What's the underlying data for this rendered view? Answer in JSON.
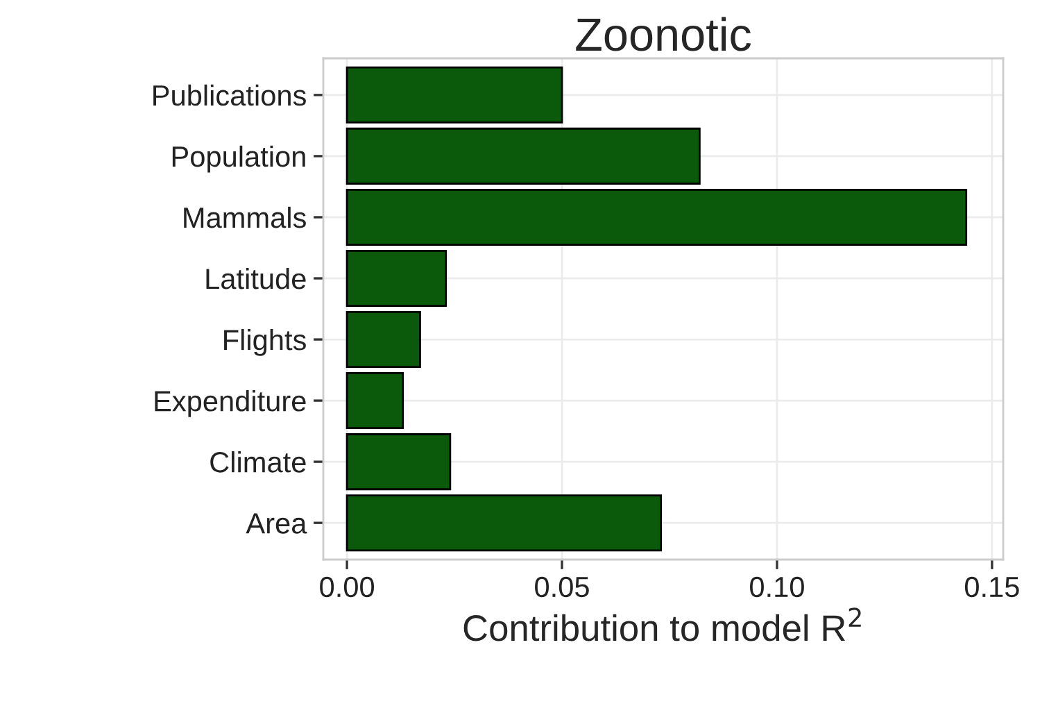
{
  "chart_data": {
    "type": "bar",
    "orientation": "horizontal",
    "title": "Zoonotic",
    "xlabel": "Contribution to model R$^{2}$",
    "categories": [
      "Publications",
      "Population",
      "Mammals",
      "Latitude",
      "Flights",
      "Expenditure",
      "Climate",
      "Area"
    ],
    "values": [
      0.05,
      0.082,
      0.144,
      0.023,
      0.017,
      0.013,
      0.024,
      0.073
    ],
    "color": "#0b5a0b",
    "xlim": [
      -0.0055,
      0.1526
    ],
    "xticks": [
      {
        "value": 0,
        "label": "0.00"
      },
      {
        "value": 0.05,
        "label": "0.05"
      },
      {
        "value": 0.1,
        "label": "0.10"
      },
      {
        "value": 0.15,
        "label": "0.15"
      }
    ],
    "grid": true
  }
}
